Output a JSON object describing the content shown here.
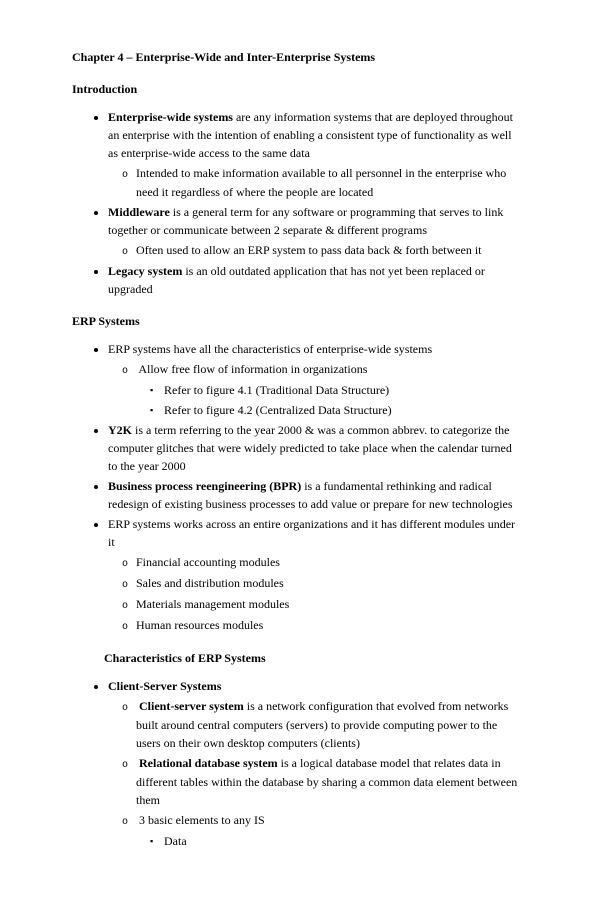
{
  "chapterTitle": "Chapter 4 – Enterprise-Wide and Inter-Enterprise Systems",
  "intro": {
    "heading": "Introduction",
    "items": [
      {
        "boldLead": "Enterprise-wide systems",
        "rest": " are any information systems that are deployed throughout an enterprise with the intention of enabling a consistent type of functionality as well as enterprise-wide access to the same data",
        "sub": [
          "Intended to make information available to all personnel in the enterprise who need it regardless of where the people are located"
        ]
      },
      {
        "boldLead": "Middleware",
        "rest": " is a general term for any software or programming that serves to link together or communicate between 2 separate & different programs",
        "sub": [
          "Often used to allow an ERP system to pass data back & forth between it"
        ]
      },
      {
        "boldLead": "Legacy system",
        "rest": " is an old outdated application that has not yet been replaced or upgraded",
        "sub": []
      }
    ]
  },
  "erp": {
    "heading": "ERP Systems",
    "items": [
      {
        "plain": "ERP systems have all the characteristics of enterprise-wide systems",
        "sub": [
          {
            "text": "Allow free flow of information in organizations",
            "sub": [
              "Refer to figure 4.1 (Traditional Data Structure)",
              "Refer to figure 4.2 (Centralized Data Structure)"
            ]
          }
        ]
      },
      {
        "boldLead": "Y2K",
        "rest": " is a term referring to the year 2000 & was a common abbrev. to categorize the computer glitches that were widely predicted to take place when the calendar turned to the year 2000",
        "sub": []
      },
      {
        "boldLead": "Business process reengineering (BPR)",
        "rest": " is a fundamental rethinking and radical redesign of existing business processes to add value or prepare for new technologies",
        "sub": []
      },
      {
        "plain": "ERP systems works across an entire organizations and it has different modules under it",
        "sub": [
          {
            "text": "Financial accounting modules"
          },
          {
            "text": "Sales and distribution modules"
          },
          {
            "text": "Materials management modules"
          },
          {
            "text": "Human resources modules"
          }
        ]
      }
    ],
    "characteristicsHeading": "Characteristics of ERP Systems",
    "clientServer": {
      "heading": "Client-Server Systems",
      "items": [
        {
          "boldLead": "Client-server system",
          "rest": " is a network configuration that evolved from networks built around central computers (servers) to provide computing power to the users on their own desktop computers (clients)"
        },
        {
          "boldLead": "Relational database system",
          "rest": " is a logical database model that relates data in different tables within the database by sharing a common data element between them"
        },
        {
          "plain": "3 basic elements to any IS",
          "sub": [
            "Data"
          ]
        }
      ]
    }
  }
}
